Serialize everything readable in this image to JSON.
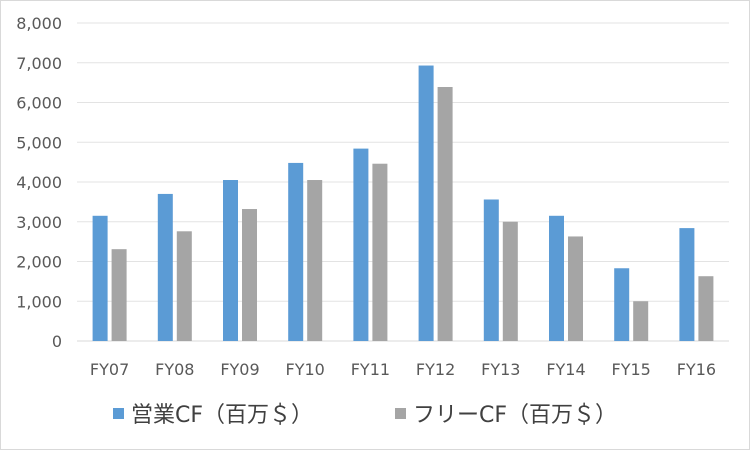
{
  "chart_data": {
    "type": "bar",
    "categories": [
      "FY07",
      "FY08",
      "FY09",
      "FY10",
      "FY11",
      "FY12",
      "FY13",
      "FY14",
      "FY15",
      "FY16"
    ],
    "series": [
      {
        "name": "営業CF（百万＄）",
        "color": "#5b9bd5",
        "values": [
          3150,
          3700,
          4050,
          4480,
          4840,
          6930,
          3560,
          3150,
          1830,
          2840
        ]
      },
      {
        "name": "フリーCF（百万＄）",
        "color": "#a5a5a5",
        "values": [
          2310,
          2760,
          3320,
          4050,
          4460,
          6390,
          3000,
          2630,
          1000,
          1630
        ]
      }
    ],
    "y_ticks": [
      "0",
      "1,000",
      "2,000",
      "3,000",
      "4,000",
      "5,000",
      "6,000",
      "7,000",
      "8,000"
    ],
    "ylim": [
      0,
      8000
    ],
    "grid": true,
    "legend_position": "bottom"
  }
}
